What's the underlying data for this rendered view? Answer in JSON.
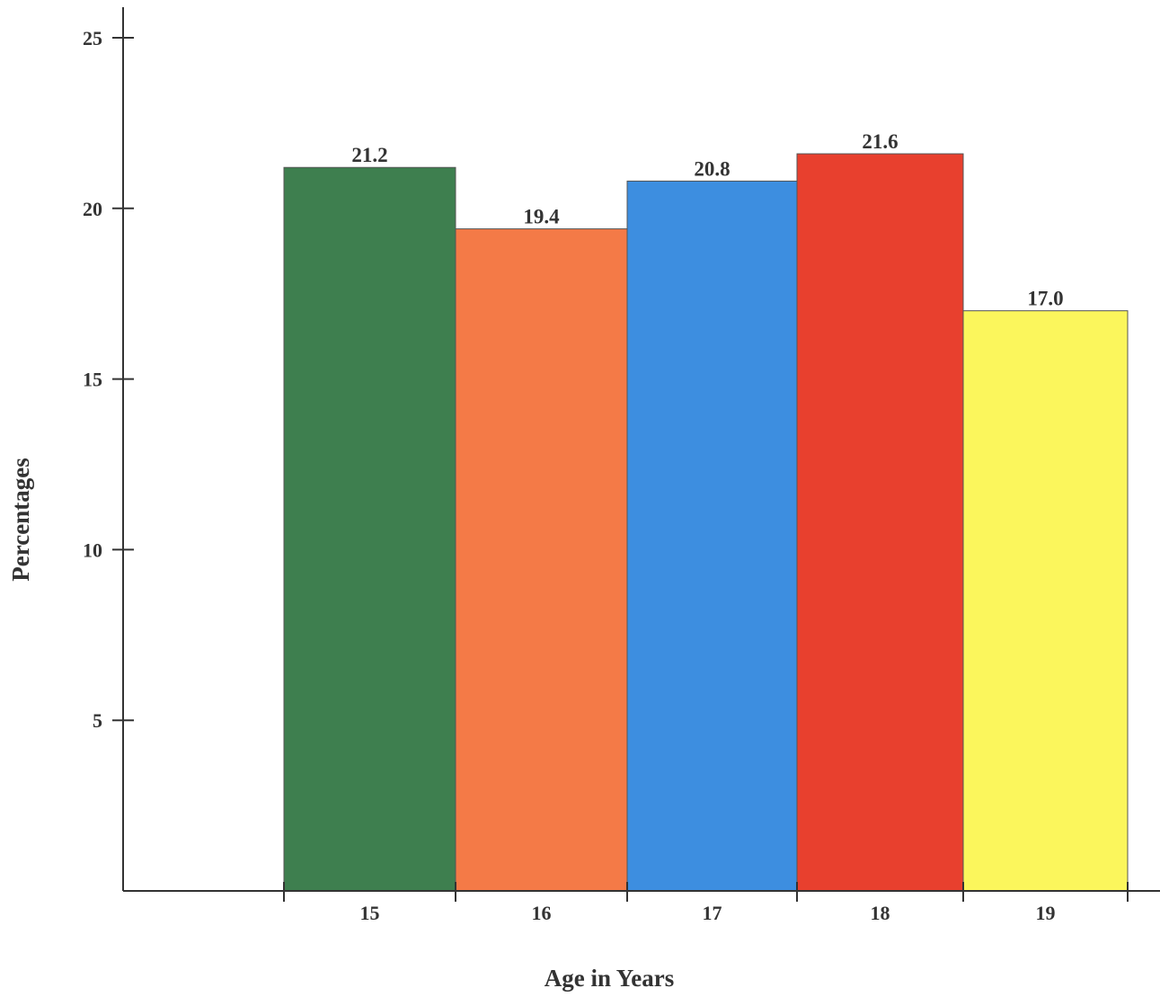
{
  "chart_data": {
    "type": "bar",
    "title": "",
    "xlabel": "Age in Years",
    "ylabel": "Percentages",
    "categories": [
      "15",
      "16",
      "17",
      "18",
      "19"
    ],
    "values": [
      21.2,
      19.4,
      20.8,
      21.6,
      17.0
    ],
    "value_labels": [
      "21.2",
      "19.4",
      "20.8",
      "21.6",
      "17.0"
    ],
    "colors": [
      "#3e7f4f",
      "#f47a47",
      "#3d8ee0",
      "#e8402e",
      "#fbf65c"
    ],
    "ylim": [
      0,
      25
    ],
    "yticks": [
      "5",
      "10",
      "15",
      "20",
      "25"
    ],
    "ytick_values": [
      5,
      10,
      15,
      20,
      25
    ],
    "grid": false,
    "legend": "none"
  }
}
